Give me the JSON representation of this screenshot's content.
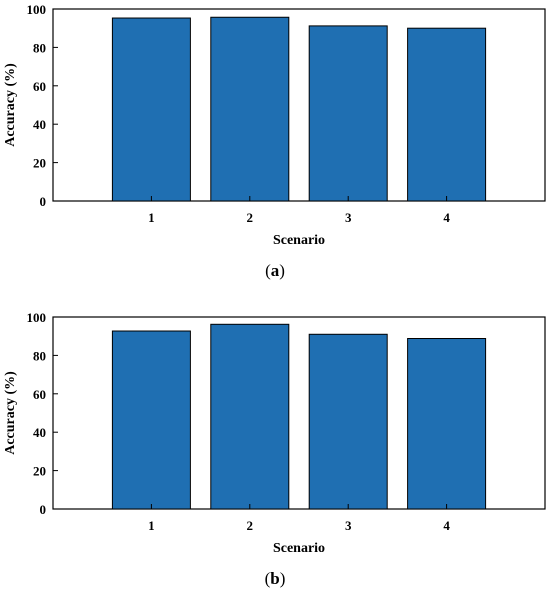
{
  "chart_data": [
    {
      "type": "bar",
      "caption_letter": "a",
      "categories": [
        "1",
        "2",
        "3",
        "4"
      ],
      "values": [
        95.3,
        95.7,
        91.2,
        90.0
      ],
      "xlabel": "Scenario",
      "ylabel": "Accuracy (%)",
      "ylim": [
        0,
        100
      ],
      "yticks": [
        0,
        20,
        40,
        60,
        80,
        100
      ],
      "grid": false,
      "bar_color": "#1f6fb2"
    },
    {
      "type": "bar",
      "caption_letter": "b",
      "categories": [
        "1",
        "2",
        "3",
        "4"
      ],
      "values": [
        92.7,
        96.2,
        91.0,
        88.8
      ],
      "xlabel": "Scenario",
      "ylabel": "Accuracy (%)",
      "ylim": [
        0,
        100
      ],
      "yticks": [
        0,
        20,
        40,
        60,
        80,
        100
      ],
      "grid": false,
      "bar_color": "#1f6fb2"
    }
  ]
}
